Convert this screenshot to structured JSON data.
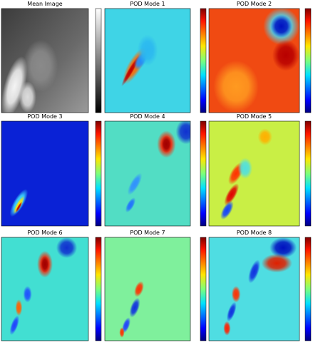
{
  "panels": [
    {
      "title": "Mean Image"
    },
    {
      "title": "POD Mode 1"
    },
    {
      "title": "POD Mode 2"
    },
    {
      "title": "POD Mode 3"
    },
    {
      "title": "POD Mode 4"
    },
    {
      "title": "POD Mode 5"
    },
    {
      "title": "POD Mode 6"
    },
    {
      "title": "POD Mode 7"
    },
    {
      "title": "POD Mode 8"
    }
  ]
}
